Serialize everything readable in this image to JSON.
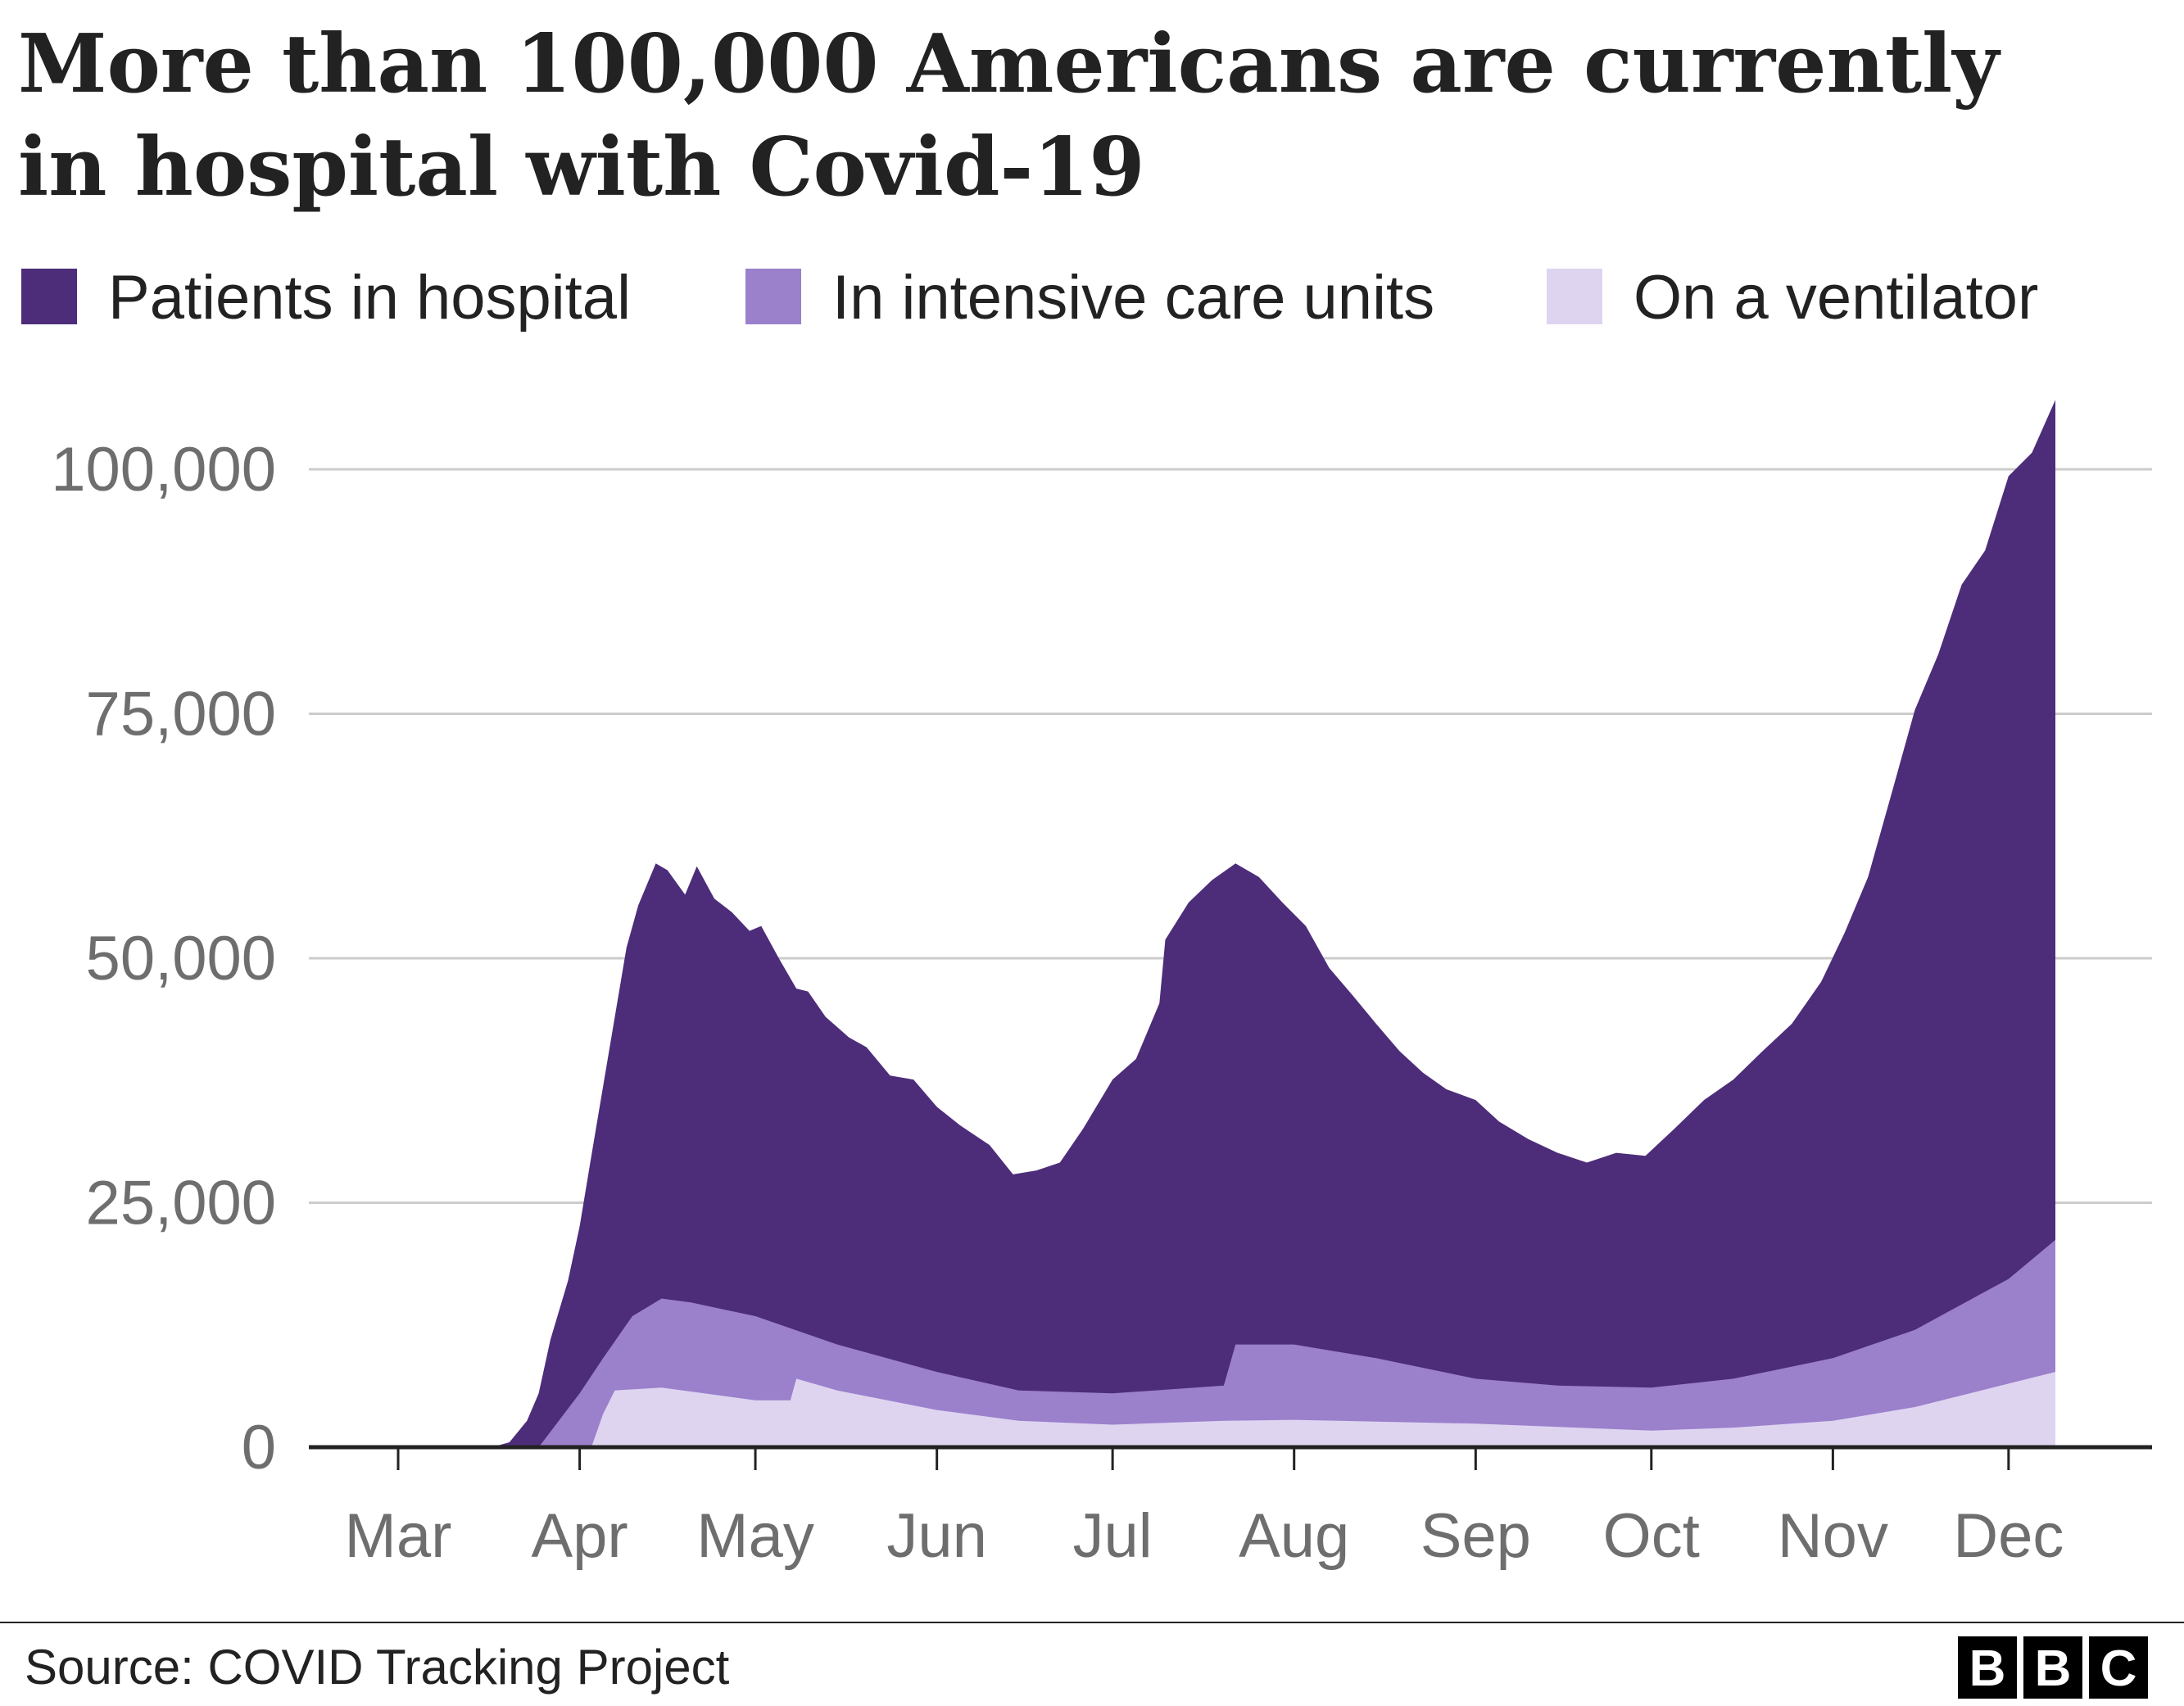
{
  "title_lines": [
    "More than 100,000 Americans are currently",
    "in hospital with Covid-19"
  ],
  "source": "Source: COVID Tracking Project",
  "logo": "BBC",
  "chart_data": {
    "type": "area",
    "title": "More than 100,000 Americans are currently in hospital with Covid-19",
    "xlabel": "",
    "ylabel": "",
    "ylim": [
      0,
      100000
    ],
    "yticks": [
      0,
      25000,
      50000,
      75000,
      100000
    ],
    "ytick_labels": [
      "0",
      "25,000",
      "50,000",
      "75,000",
      "100,000"
    ],
    "xtick_labels": [
      "Mar",
      "Apr",
      "May",
      "Jun",
      "Jul",
      "Aug",
      "Sep",
      "Oct",
      "Nov",
      "Dec"
    ],
    "grid": true,
    "legend_position": "top",
    "series": [
      {
        "name": "Patients in hospital",
        "color": "#4d2c7a",
        "x": [
          "Mar 17",
          "Mar 20",
          "Mar 23",
          "Mar 25",
          "Mar 27",
          "Mar 30",
          "Apr 1",
          "Apr 3",
          "Apr 5",
          "Apr 7",
          "Apr 9",
          "Apr 11",
          "Apr 14",
          "Apr 16",
          "Apr 19",
          "Apr 21",
          "Apr 24",
          "Apr 27",
          "Apr 30",
          "May 2",
          "May 5",
          "May 8",
          "May 10",
          "May 13",
          "May 17",
          "May 20",
          "May 24",
          "May 28",
          "Jun 1",
          "Jun 5",
          "Jun 10",
          "Jun 14",
          "Jun 18",
          "Jun 22",
          "Jun 26",
          "Jul 1",
          "Jul 5",
          "Jul 9",
          "Jul 10",
          "Jul 14",
          "Jul 18",
          "Jul 22",
          "Jul 26",
          "Jul 30",
          "Aug 3",
          "Aug 7",
          "Aug 11",
          "Aug 15",
          "Aug 19",
          "Aug 23",
          "Aug 27",
          "Sep 1",
          "Sep 5",
          "Sep 10",
          "Sep 15",
          "Sep 20",
          "Sep 25",
          "Sep 30",
          "Oct 5",
          "Oct 10",
          "Oct 15",
          "Oct 20",
          "Oct 25",
          "Oct 30",
          "Nov 3",
          "Nov 7",
          "Nov 11",
          "Nov 15",
          "Nov 19",
          "Nov 23",
          "Nov 27",
          "Dec 1",
          "Dec 5",
          "Dec 9"
        ],
        "values": [
          0,
          500,
          2700,
          5500,
          11000,
          17000,
          22600,
          29800,
          36900,
          44000,
          51100,
          55400,
          59700,
          59000,
          56500,
          59400,
          56100,
          54700,
          52800,
          53300,
          50000,
          46900,
          46600,
          44000,
          41900,
          40900,
          38000,
          37600,
          34800,
          32900,
          30900,
          27900,
          28300,
          29100,
          32600,
          37600,
          39700,
          45400,
          51900,
          55700,
          58000,
          59700,
          58300,
          55700,
          53300,
          49000,
          46200,
          43300,
          40500,
          38300,
          36600,
          35500,
          33300,
          31500,
          30100,
          29100,
          30100,
          29800,
          32600,
          35500,
          37600,
          40500,
          43300,
          47600,
          52600,
          58300,
          66800,
          75400,
          81100,
          88200,
          91700,
          99300,
          101700,
          107100
        ]
      },
      {
        "name": "In intensive care units",
        "color": "#9b80cc",
        "x": [
          "Mar 25",
          "Apr 1",
          "Apr 5",
          "Apr 10",
          "Apr 15",
          "Apr 20",
          "May 1",
          "May 15",
          "Jun 1",
          "Jun 15",
          "Jul 1",
          "Jul 20",
          "Jul 22",
          "Aug 1",
          "Aug 15",
          "Sep 1",
          "Sep 15",
          "Oct 1",
          "Oct 15",
          "Nov 1",
          "Nov 15",
          "Dec 1",
          "Dec 9"
        ],
        "values": [
          0,
          5500,
          9100,
          13400,
          15200,
          14800,
          13400,
          10500,
          7700,
          5800,
          5500,
          6300,
          10500,
          10500,
          9100,
          7000,
          6300,
          6100,
          7000,
          9100,
          12000,
          17200,
          21200
        ]
      },
      {
        "name": "On a ventilator",
        "color": "#ded4f0",
        "x": [
          "Apr 3",
          "Apr 5",
          "Apr 7",
          "Apr 15",
          "May 1",
          "May 7",
          "May 8",
          "May 15",
          "Jun 1",
          "Jun 15",
          "Jul 1",
          "Jul 20",
          "Aug 1",
          "Sep 1",
          "Oct 1",
          "Oct 15",
          "Nov 1",
          "Nov 15",
          "Dec 1",
          "Dec 9"
        ],
        "values": [
          0,
          3400,
          5800,
          6100,
          4800,
          4800,
          7000,
          5800,
          3800,
          2700,
          2300,
          2700,
          2800,
          2400,
          1700,
          2000,
          2700,
          4100,
          6500,
          7700
        ]
      }
    ]
  }
}
